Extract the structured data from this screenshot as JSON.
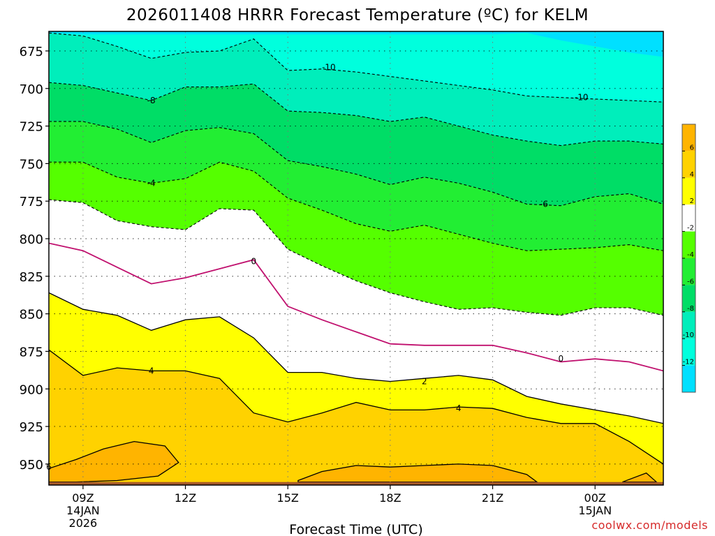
{
  "chart_data": {
    "type": "heatmap",
    "title": "2026011408 HRRR Forecast Temperature (ºC) for KELM",
    "xlabel": "Forecast Time (UTC)",
    "ylabel": "",
    "credit": "coolwx.com/models",
    "x_ticks": [
      {
        "hour": 9,
        "label": "09Z",
        "sub1": "14JAN",
        "sub2": "2026"
      },
      {
        "hour": 12,
        "label": "12Z",
        "sub1": "",
        "sub2": ""
      },
      {
        "hour": 15,
        "label": "15Z",
        "sub1": "",
        "sub2": ""
      },
      {
        "hour": 18,
        "label": "18Z",
        "sub1": "",
        "sub2": ""
      },
      {
        "hour": 21,
        "label": "21Z",
        "sub1": "",
        "sub2": ""
      },
      {
        "hour": 24,
        "label": "00Z",
        "sub1": "15JAN",
        "sub2": ""
      }
    ],
    "xlim": [
      8,
      26
    ],
    "y_ticks": [
      "675",
      "700",
      "725",
      "750",
      "775",
      "800",
      "825",
      "850",
      "875",
      "900",
      "925",
      "950"
    ],
    "ylim": [
      662,
      964
    ],
    "grid": true,
    "colorbar": {
      "ticks": [
        "6",
        "4",
        "2",
        "-2",
        "-4",
        "-6",
        "-8",
        "-10",
        "-12"
      ],
      "colors": [
        "#ffb400",
        "#ffd200",
        "#ffff00",
        "#ffffff",
        "#55ff00",
        "#22ee33",
        "#00dd66",
        "#00eebb",
        "#00ffdd",
        "#00e0ff"
      ]
    },
    "hours": [
      8,
      9,
      10,
      11,
      12,
      13,
      14,
      15,
      16,
      17,
      18,
      19,
      20,
      21,
      22,
      23,
      24,
      25,
      26
    ],
    "isotherms": [
      {
        "value": -12,
        "label": "",
        "p": [
          663,
          664,
          664,
          664,
          664,
          664,
          664,
          664,
          664,
          664,
          664,
          664,
          664,
          664,
          663,
          668,
          672,
          676,
          679
        ]
      },
      {
        "value": -10,
        "label": "-10",
        "p": [
          663,
          665,
          672,
          680,
          676,
          675,
          667,
          688,
          687,
          689,
          692,
          695,
          698,
          701,
          705,
          706,
          707,
          708,
          709
        ]
      },
      {
        "value": -8,
        "label": "-8",
        "p": [
          696,
          698,
          703,
          708,
          699,
          699,
          697,
          715,
          716,
          718,
          722,
          719,
          725,
          731,
          735,
          738,
          735,
          735,
          737
        ]
      },
      {
        "value": -6,
        "label": "-6",
        "p": [
          722,
          722,
          727,
          736,
          728,
          726,
          730,
          748,
          752,
          757,
          764,
          759,
          763,
          769,
          777,
          778,
          772,
          770,
          777
        ]
      },
      {
        "value": -4,
        "label": "-4",
        "p": [
          749,
          749,
          759,
          763,
          760,
          749,
          755,
          773,
          781,
          790,
          795,
          791,
          797,
          803,
          808,
          807,
          806,
          804,
          808
        ]
      },
      {
        "value": -2,
        "label": "",
        "p": [
          774,
          776,
          788,
          792,
          794,
          780,
          781,
          807,
          818,
          828,
          836,
          842,
          847,
          846,
          849,
          851,
          846,
          846,
          851
        ]
      },
      {
        "value": 0,
        "label": "0",
        "p": [
          803,
          808,
          819,
          830,
          826,
          820,
          814,
          845,
          854,
          862,
          870,
          871,
          871,
          871,
          876,
          882,
          880,
          882,
          888
        ]
      },
      {
        "value": 2,
        "label": "2",
        "p": [
          836,
          847,
          851,
          861,
          854,
          852,
          866,
          889,
          889,
          893,
          895,
          893,
          891,
          894,
          905,
          910,
          914,
          918,
          923
        ]
      },
      {
        "value": 4,
        "label": "4",
        "p": [
          874,
          891,
          886,
          888,
          888,
          893,
          916,
          922,
          916,
          909,
          914,
          914,
          912,
          913,
          919,
          923,
          923,
          935,
          950
        ]
      }
    ],
    "contour_labels": [
      {
        "value": -10,
        "text": "-10",
        "x": 16.2,
        "p": 686
      },
      {
        "value": -10,
        "text": "-10",
        "x": 23.6,
        "p": 706
      },
      {
        "value": -8,
        "text": "-8",
        "x": 11.0,
        "p": 708
      },
      {
        "value": -6,
        "text": "-6",
        "x": 22.5,
        "p": 777
      },
      {
        "value": -4,
        "text": "-4",
        "x": 11.0,
        "p": 763
      },
      {
        "value": 0,
        "text": "0",
        "x": 14.0,
        "p": 815
      },
      {
        "value": 0,
        "text": "0",
        "x": 23.0,
        "p": 880
      },
      {
        "value": 2,
        "text": "2",
        "x": 19.0,
        "p": 895
      },
      {
        "value": 4,
        "text": "4",
        "x": 11.0,
        "p": 888
      },
      {
        "value": 4,
        "text": "4",
        "x": 20.0,
        "p": 913
      },
      {
        "value": 6,
        "text": "6",
        "x": 8.0,
        "p": 952
      }
    ],
    "warm_pockets": [
      {
        "value": 6,
        "points": [
          [
            8.0,
            953
          ],
          [
            8.8,
            947
          ],
          [
            9.6,
            940
          ],
          [
            10.5,
            935
          ],
          [
            11.4,
            938
          ],
          [
            11.8,
            949
          ],
          [
            11.2,
            958
          ],
          [
            10.0,
            961
          ],
          [
            8.8,
            962
          ],
          [
            8.0,
            962
          ]
        ]
      },
      {
        "value": 6,
        "points": [
          [
            15.3,
            961
          ],
          [
            16.0,
            955
          ],
          [
            17.0,
            951
          ],
          [
            18.0,
            952
          ],
          [
            19.0,
            951
          ],
          [
            20.0,
            950
          ],
          [
            21.0,
            951
          ],
          [
            22.0,
            957
          ],
          [
            22.3,
            962
          ],
          [
            15.3,
            962
          ]
        ]
      },
      {
        "value": 6,
        "points": [
          [
            24.8,
            962
          ],
          [
            25.5,
            956
          ],
          [
            25.8,
            962
          ]
        ]
      }
    ],
    "ground": {
      "color": "#a65a2a",
      "p": 962
    }
  }
}
